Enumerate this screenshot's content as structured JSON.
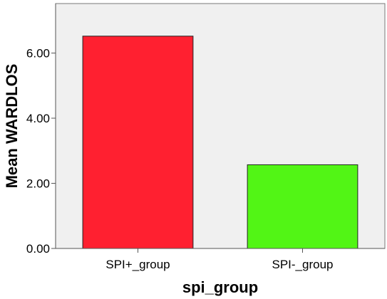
{
  "chart_data": {
    "type": "bar",
    "title": "",
    "xlabel": "spi_group",
    "ylabel": "Mean WARDLOS",
    "categories": [
      "SPI+_group",
      "SPI-_group"
    ],
    "values": [
      6.52,
      2.57
    ],
    "bar_colors": [
      "#ff2030",
      "#52f515"
    ],
    "ylim": [
      0,
      7.52
    ],
    "yticks": [
      0,
      2,
      4,
      6
    ],
    "ytick_labels": [
      "0.00",
      "2.00",
      "4.00",
      "6.00"
    ],
    "grid": false,
    "legend": "none",
    "plot_background": "#f0f0f0"
  }
}
